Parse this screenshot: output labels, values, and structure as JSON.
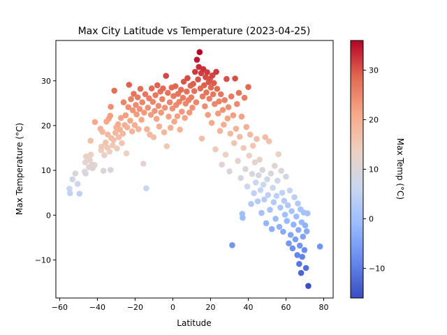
{
  "chart_data": {
    "type": "scatter",
    "title": "Max City Latitude vs Temperature (2023-04-25)",
    "xlabel": "Latitude",
    "ylabel": "Max Temperature (°C)",
    "xlim": [
      -62,
      85
    ],
    "ylim": [
      -18.5,
      39
    ],
    "xticks": [
      -60,
      -40,
      -20,
      0,
      20,
      40,
      60,
      80
    ],
    "yticks": [
      -10,
      0,
      10,
      20,
      30
    ],
    "grid": false,
    "legend": "none",
    "colormap": {
      "name": "coolwarm",
      "label": "Max Temp (°C)",
      "range": [
        -16,
        36
      ],
      "ticks": [
        -10,
        0,
        10,
        20,
        30
      ],
      "stops": [
        "#3b4cc0",
        "#6688ee",
        "#9abbff",
        "#c9d7f0",
        "#edd1c2",
        "#f7a889",
        "#e26952",
        "#b40426"
      ]
    },
    "points": [
      {
        "x": -54.8,
        "y": 5.9
      },
      {
        "x": -54.5,
        "y": 4.9
      },
      {
        "x": -53.2,
        "y": 8.0
      },
      {
        "x": -51.7,
        "y": 9.3
      },
      {
        "x": -50.5,
        "y": 7.0
      },
      {
        "x": -49.5,
        "y": 4.8
      },
      {
        "x": -46.7,
        "y": 9.7
      },
      {
        "x": -46.2,
        "y": 9.3
      },
      {
        "x": -46.4,
        "y": 11.8
      },
      {
        "x": -46.0,
        "y": 13.1
      },
      {
        "x": -44.5,
        "y": 10.7
      },
      {
        "x": -44.0,
        "y": 12.3
      },
      {
        "x": -43.5,
        "y": 13.5
      },
      {
        "x": -43.6,
        "y": 16.6
      },
      {
        "x": -42.9,
        "y": 11.3
      },
      {
        "x": -42.5,
        "y": 10.5
      },
      {
        "x": -41.3,
        "y": 20.8
      },
      {
        "x": -41.5,
        "y": 11.2
      },
      {
        "x": -38.4,
        "y": 19.3
      },
      {
        "x": -38.0,
        "y": 14.5
      },
      {
        "x": -37.8,
        "y": 15.3
      },
      {
        "x": -37.3,
        "y": 18.6
      },
      {
        "x": -36.8,
        "y": 9.9
      },
      {
        "x": -36.3,
        "y": 13.4
      },
      {
        "x": -35.6,
        "y": 16.2
      },
      {
        "x": -35.2,
        "y": 20.9
      },
      {
        "x": -34.7,
        "y": 15.1
      },
      {
        "x": -34.5,
        "y": 18.0
      },
      {
        "x": -34.0,
        "y": 21.5
      },
      {
        "x": -33.6,
        "y": 14.2
      },
      {
        "x": -33.2,
        "y": 22.2
      },
      {
        "x": -33.0,
        "y": 10.1
      },
      {
        "x": -32.6,
        "y": 17.2
      },
      {
        "x": -32.9,
        "y": 24.2
      },
      {
        "x": -31.9,
        "y": 15.6
      },
      {
        "x": -31.4,
        "y": 16.8
      },
      {
        "x": -31.0,
        "y": 27.8
      },
      {
        "x": -30.4,
        "y": 18.4
      },
      {
        "x": -30.0,
        "y": 19.6
      },
      {
        "x": -29.6,
        "y": 14.9
      },
      {
        "x": -29.0,
        "y": 20.3
      },
      {
        "x": -28.6,
        "y": 17.4
      },
      {
        "x": -28.0,
        "y": 19.1
      },
      {
        "x": -27.5,
        "y": 21.7
      },
      {
        "x": -27.0,
        "y": 16.1
      },
      {
        "x": -26.5,
        "y": 18.2
      },
      {
        "x": -26.1,
        "y": 25.2
      },
      {
        "x": -25.5,
        "y": 20.1
      },
      {
        "x": -25.0,
        "y": 22.3
      },
      {
        "x": -24.6,
        "y": 13.8
      },
      {
        "x": -24.2,
        "y": 19.6
      },
      {
        "x": -23.6,
        "y": 24.1
      },
      {
        "x": -23.2,
        "y": 29.1
      },
      {
        "x": -22.6,
        "y": 21.1
      },
      {
        "x": -22.2,
        "y": 25.9
      },
      {
        "x": -21.6,
        "y": 18.7
      },
      {
        "x": -21.2,
        "y": 23.4
      },
      {
        "x": -20.7,
        "y": 27.1
      },
      {
        "x": -20.2,
        "y": 20.1
      },
      {
        "x": -19.6,
        "y": 24.6
      },
      {
        "x": -19.2,
        "y": 22.5
      },
      {
        "x": -18.6,
        "y": 26.3
      },
      {
        "x": -18.2,
        "y": 19.2
      },
      {
        "x": -17.6,
        "y": 23.7
      },
      {
        "x": -17.2,
        "y": 28.2
      },
      {
        "x": -16.6,
        "y": 21.3
      },
      {
        "x": -16.2,
        "y": 25.2
      },
      {
        "x": -15.6,
        "y": 11.5
      },
      {
        "x": -15.2,
        "y": 22.9
      },
      {
        "x": -14.6,
        "y": 27.0
      },
      {
        "x": -14.1,
        "y": 6.0
      },
      {
        "x": -13.7,
        "y": 19.2
      },
      {
        "x": -13.2,
        "y": 24.0
      },
      {
        "x": -12.6,
        "y": 26.1
      },
      {
        "x": -12.2,
        "y": 18.0
      },
      {
        "x": -11.6,
        "y": 22.4
      },
      {
        "x": -11.2,
        "y": 28.3
      },
      {
        "x": -10.6,
        "y": 25.3
      },
      {
        "x": -10.2,
        "y": 17.4
      },
      {
        "x": -9.6,
        "y": 23.3
      },
      {
        "x": -9.2,
        "y": 26.8
      },
      {
        "x": -8.6,
        "y": 21.5
      },
      {
        "x": -8.2,
        "y": 29.0
      },
      {
        "x": -7.6,
        "y": 24.4
      },
      {
        "x": -7.2,
        "y": 19.8
      },
      {
        "x": -6.6,
        "y": 27.6
      },
      {
        "x": -6.2,
        "y": 22.9
      },
      {
        "x": -5.6,
        "y": 25.9
      },
      {
        "x": -5.2,
        "y": 28.3
      },
      {
        "x": -4.6,
        "y": 18.5
      },
      {
        "x": -4.2,
        "y": 24.0
      },
      {
        "x": -3.6,
        "y": 31.1
      },
      {
        "x": -3.2,
        "y": 15.4
      },
      {
        "x": -2.6,
        "y": 27.3
      },
      {
        "x": -2.2,
        "y": 22.0
      },
      {
        "x": -1.6,
        "y": 25.2
      },
      {
        "x": -1.2,
        "y": 19.5
      },
      {
        "x": -0.6,
        "y": 28.5
      },
      {
        "x": -0.2,
        "y": 23.8
      },
      {
        "x": 0.4,
        "y": 26.6
      },
      {
        "x": 0.8,
        "y": 20.9
      },
      {
        "x": 1.4,
        "y": 28.8
      },
      {
        "x": 1.8,
        "y": 24.6
      },
      {
        "x": 2.4,
        "y": 22.1
      },
      {
        "x": 2.8,
        "y": 27.1
      },
      {
        "x": 3.4,
        "y": 25.3
      },
      {
        "x": 3.8,
        "y": 19.1
      },
      {
        "x": 4.4,
        "y": 28.0
      },
      {
        "x": 4.8,
        "y": 23.1
      },
      {
        "x": 5.4,
        "y": 26.2
      },
      {
        "x": 5.8,
        "y": 29.8
      },
      {
        "x": 6.4,
        "y": 21.7
      },
      {
        "x": 6.8,
        "y": 24.9
      },
      {
        "x": 7.4,
        "y": 27.6
      },
      {
        "x": 7.8,
        "y": 30.6
      },
      {
        "x": 8.4,
        "y": 25.7
      },
      {
        "x": 8.8,
        "y": 22.9
      },
      {
        "x": 9.4,
        "y": 28.9
      },
      {
        "x": 9.8,
        "y": 26.3
      },
      {
        "x": 10.4,
        "y": 24.0
      },
      {
        "x": 10.8,
        "y": 29.3
      },
      {
        "x": 11.4,
        "y": 27.7
      },
      {
        "x": 11.8,
        "y": 32.0
      },
      {
        "x": 12.4,
        "y": 25.2
      },
      {
        "x": 12.8,
        "y": 34.7
      },
      {
        "x": 13.4,
        "y": 30.3
      },
      {
        "x": 13.8,
        "y": 33.1
      },
      {
        "x": 14.2,
        "y": 36.4
      },
      {
        "x": 14.6,
        "y": 28.3
      },
      {
        "x": 15.0,
        "y": 31.7
      },
      {
        "x": 15.4,
        "y": 17.1
      },
      {
        "x": 15.8,
        "y": 26.5
      },
      {
        "x": 16.2,
        "y": 32.6
      },
      {
        "x": 16.6,
        "y": 29.0
      },
      {
        "x": 17.0,
        "y": 24.3
      },
      {
        "x": 17.4,
        "y": 30.8
      },
      {
        "x": 17.8,
        "y": 27.4
      },
      {
        "x": 18.2,
        "y": 31.9
      },
      {
        "x": 18.6,
        "y": 22.4
      },
      {
        "x": 19.0,
        "y": 29.7
      },
      {
        "x": 19.4,
        "y": 26.0
      },
      {
        "x": 19.8,
        "y": 30.5
      },
      {
        "x": 20.2,
        "y": 28.5
      },
      {
        "x": 20.6,
        "y": 20.6
      },
      {
        "x": 21.0,
        "y": 31.2
      },
      {
        "x": 21.4,
        "y": 27.0
      },
      {
        "x": 21.8,
        "y": 29.5
      },
      {
        "x": 22.2,
        "y": 24.8
      },
      {
        "x": 22.6,
        "y": 14.7
      },
      {
        "x": 23.0,
        "y": 32.0
      },
      {
        "x": 23.5,
        "y": 28.2
      },
      {
        "x": 24.0,
        "y": 22.7
      },
      {
        "x": 24.5,
        "y": 25.4
      },
      {
        "x": 25.0,
        "y": 18.8
      },
      {
        "x": 25.5,
        "y": 27.0
      },
      {
        "x": 26.0,
        "y": 11.3
      },
      {
        "x": 26.5,
        "y": 23.5
      },
      {
        "x": 27.0,
        "y": 20.2
      },
      {
        "x": 27.5,
        "y": 25.7
      },
      {
        "x": 28.0,
        "y": 13.5
      },
      {
        "x": 28.5,
        "y": 30.4
      },
      {
        "x": 29.0,
        "y": 21.6
      },
      {
        "x": 29.5,
        "y": 24.1
      },
      {
        "x": 30.0,
        "y": 9.8
      },
      {
        "x": 30.5,
        "y": 18.2
      },
      {
        "x": 31.0,
        "y": 26.5
      },
      {
        "x": 31.5,
        "y": -6.7
      },
      {
        "x": 32.0,
        "y": 22.3
      },
      {
        "x": 32.5,
        "y": 16.1
      },
      {
        "x": 33.0,
        "y": 30.5
      },
      {
        "x": 33.5,
        "y": 19.3
      },
      {
        "x": 34.0,
        "y": 24.8
      },
      {
        "x": 34.5,
        "y": 12.1
      },
      {
        "x": 35.0,
        "y": 27.3
      },
      {
        "x": 35.5,
        "y": 17.5
      },
      {
        "x": 36.0,
        "y": 8.3
      },
      {
        "x": 36.5,
        "y": 22.0
      },
      {
        "x": 36.8,
        "y": 0.3
      },
      {
        "x": 37.0,
        "y": -0.6
      },
      {
        "x": 37.5,
        "y": 15.0
      },
      {
        "x": 38.0,
        "y": 26.2
      },
      {
        "x": 38.5,
        "y": 10.3
      },
      {
        "x": 39.0,
        "y": 19.7
      },
      {
        "x": 39.5,
        "y": 6.4
      },
      {
        "x": 40.0,
        "y": 28.6
      },
      {
        "x": 40.5,
        "y": 13.3
      },
      {
        "x": 41.0,
        "y": 18.0
      },
      {
        "x": 41.5,
        "y": 2.5
      },
      {
        "x": 42.0,
        "y": 9.2
      },
      {
        "x": 42.5,
        "y": 15.5
      },
      {
        "x": 43.0,
        "y": 4.9
      },
      {
        "x": 43.5,
        "y": 11.8
      },
      {
        "x": 44.0,
        "y": 7.3
      },
      {
        "x": 44.5,
        "y": 17.0
      },
      {
        "x": 45.0,
        "y": 3.1
      },
      {
        "x": 45.5,
        "y": 8.9
      },
      {
        "x": 46.0,
        "y": 12.4
      },
      {
        "x": 46.5,
        "y": 5.6
      },
      {
        "x": 47.0,
        "y": 0.5
      },
      {
        "x": 47.5,
        "y": 10.1
      },
      {
        "x": 48.0,
        "y": 6.8
      },
      {
        "x": 48.5,
        "y": 3.5
      },
      {
        "x": 49.0,
        "y": 17.4
      },
      {
        "x": 49.5,
        "y": -1.8
      },
      {
        "x": 50.0,
        "y": 8.0
      },
      {
        "x": 50.5,
        "y": 4.5
      },
      {
        "x": 51.0,
        "y": 16.5
      },
      {
        "x": 51.5,
        "y": 1.2
      },
      {
        "x": 52.0,
        "y": 9.3
      },
      {
        "x": 52.5,
        "y": -3.1
      },
      {
        "x": 53.0,
        "y": 6.1
      },
      {
        "x": 53.5,
        "y": 2.9
      },
      {
        "x": 54.0,
        "y": 11.0
      },
      {
        "x": 54.5,
        "y": -0.8
      },
      {
        "x": 55.0,
        "y": 4.3
      },
      {
        "x": 55.5,
        "y": 7.7
      },
      {
        "x": 56.0,
        "y": 13.6
      },
      {
        "x": 56.5,
        "y": -2.6
      },
      {
        "x": 57.0,
        "y": 1.7
      },
      {
        "x": 57.5,
        "y": 9.9
      },
      {
        "x": 58.0,
        "y": 5.0
      },
      {
        "x": 58.5,
        "y": -3.7
      },
      {
        "x": 59.0,
        "y": 3.2
      },
      {
        "x": 59.5,
        "y": 0.1
      },
      {
        "x": 60.0,
        "y": 8.6
      },
      {
        "x": 60.5,
        "y": -1.3
      },
      {
        "x": 61.0,
        "y": 2.2
      },
      {
        "x": 61.5,
        "y": -6.3
      },
      {
        "x": 62.0,
        "y": 5.5
      },
      {
        "x": 62.5,
        "y": -4.4
      },
      {
        "x": 63.0,
        "y": 0.9
      },
      {
        "x": 63.5,
        "y": -7.4
      },
      {
        "x": 64.0,
        "y": -2.1
      },
      {
        "x": 64.5,
        "y": 4.0
      },
      {
        "x": 65.0,
        "y": -5.4
      },
      {
        "x": 65.5,
        "y": -0.3
      },
      {
        "x": 66.0,
        "y": -8.9
      },
      {
        "x": 66.3,
        "y": 2.6
      },
      {
        "x": 66.6,
        "y": -3.3
      },
      {
        "x": 67.0,
        "y": -10.9
      },
      {
        "x": 67.3,
        "y": -6.8
      },
      {
        "x": 67.7,
        "y": 1.3
      },
      {
        "x": 68.0,
        "y": -12.9
      },
      {
        "x": 68.3,
        "y": -1.6
      },
      {
        "x": 68.6,
        "y": -9.3
      },
      {
        "x": 69.0,
        "y": -4.8
      },
      {
        "x": 69.4,
        "y": 0.6
      },
      {
        "x": 69.8,
        "y": -7.8
      },
      {
        "x": 70.2,
        "y": -2.3
      },
      {
        "x": 70.6,
        "y": -11.8
      },
      {
        "x": 71.0,
        "y": -3.6
      },
      {
        "x": 71.4,
        "y": 0.4
      },
      {
        "x": 71.8,
        "y": -15.8
      },
      {
        "x": 78.0,
        "y": -7.0
      }
    ]
  }
}
